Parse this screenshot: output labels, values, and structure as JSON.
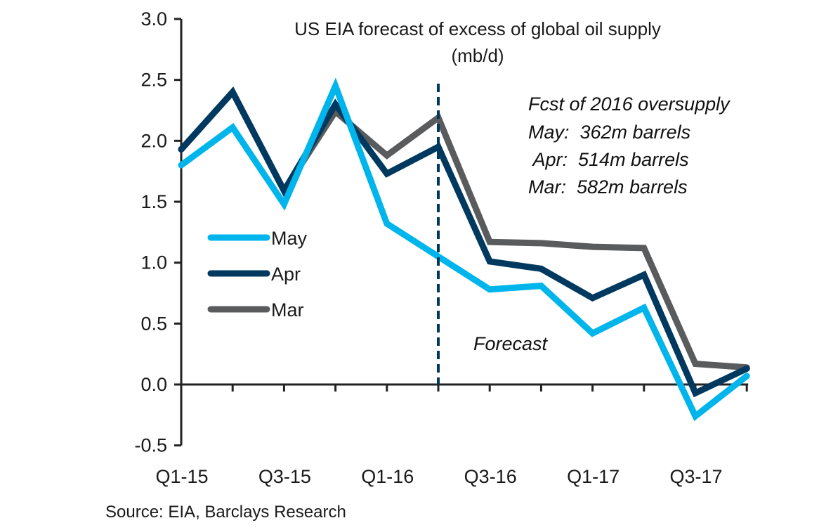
{
  "chart_data": {
    "type": "line",
    "title": "US EIA forecast of excess of global oil supply",
    "subtitle": "(mb/d)",
    "xlabel": "",
    "ylabel": "",
    "ylim": [
      -0.5,
      3.0
    ],
    "yticks": [
      "-0.5",
      "0.0",
      "0.5",
      "1.0",
      "1.5",
      "2.0",
      "2.5",
      "3.0"
    ],
    "ytick_values": [
      -0.5,
      0.0,
      0.5,
      1.0,
      1.5,
      2.0,
      2.5,
      3.0
    ],
    "categories": [
      "Q1-15",
      "Q2-15",
      "Q3-15",
      "Q4-15",
      "Q1-16",
      "Q2-16",
      "Q3-16",
      "Q4-16",
      "Q1-17",
      "Q2-17",
      "Q3-17",
      "Q4-17"
    ],
    "xtick_labels": [
      "Q1-15",
      "",
      "Q3-15",
      "",
      "Q1-16",
      "",
      "Q3-16",
      "",
      "Q1-17",
      "",
      "Q3-17",
      ""
    ],
    "series": [
      {
        "name": "May",
        "color": "#00b5ec",
        "values": [
          1.8,
          2.11,
          1.48,
          2.45,
          1.32,
          1.05,
          0.78,
          0.81,
          0.42,
          0.63,
          -0.26,
          0.07
        ]
      },
      {
        "name": "Apr",
        "color": "#00395f",
        "values": [
          1.93,
          2.4,
          1.59,
          2.3,
          1.73,
          1.95,
          1.01,
          0.95,
          0.71,
          0.9,
          -0.07,
          0.13
        ]
      },
      {
        "name": "Mar",
        "color": "#5a5b5d",
        "values": [
          1.93,
          2.4,
          1.59,
          2.24,
          1.88,
          2.19,
          1.17,
          1.16,
          1.13,
          1.12,
          0.17,
          0.14
        ]
      }
    ],
    "forecast_start": "Q2-16",
    "forecast_label": "Forecast",
    "legend": "left-middle",
    "grid": false,
    "annotation": {
      "heading": "Fcst of 2016 oversupply",
      "lines": [
        "May:  362m barrels",
        " Apr:  514m barrels",
        "Mar:  582m barrels"
      ]
    },
    "source": "Source: EIA, Barclays Research"
  }
}
